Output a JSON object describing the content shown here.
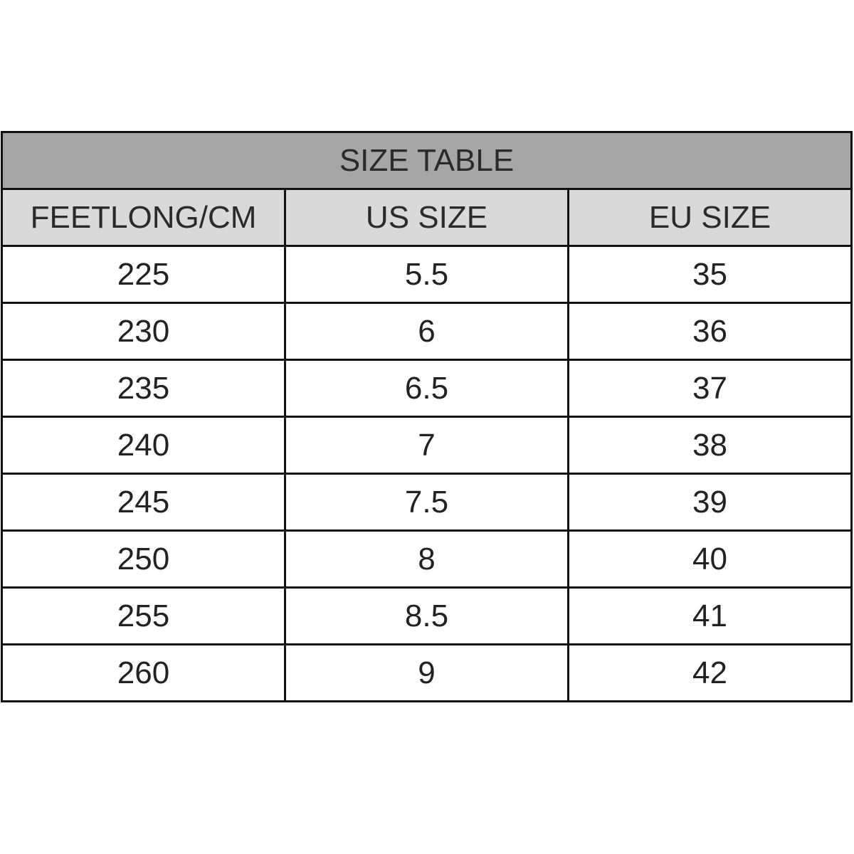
{
  "title": "SIZE TABLE",
  "colors": {
    "title_bg": "#a6a6a6",
    "header_bg": "#d9d9d9",
    "border": "#111111"
  },
  "headers": [
    "FEETLONG/CM",
    "US SIZE",
    "EU SIZE"
  ],
  "rows": [
    [
      "225",
      "5.5",
      "35"
    ],
    [
      "230",
      "6",
      "36"
    ],
    [
      "235",
      "6.5",
      "37"
    ],
    [
      "240",
      "7",
      "38"
    ],
    [
      "245",
      "7.5",
      "39"
    ],
    [
      "250",
      "8",
      "40"
    ],
    [
      "255",
      "8.5",
      "41"
    ],
    [
      "260",
      "9",
      "42"
    ]
  ]
}
